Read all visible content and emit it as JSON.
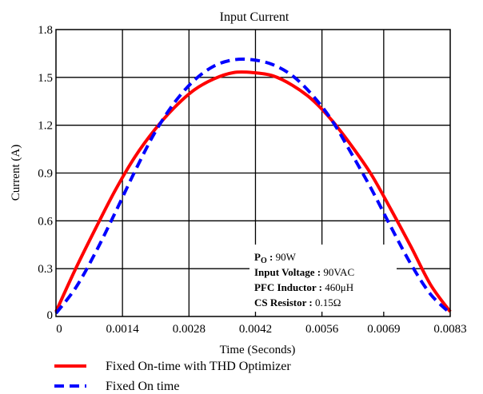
{
  "chart_data": {
    "type": "line",
    "title": "Input Current",
    "xlabel": "Time (Seconds)",
    "ylabel": "Current (A)",
    "xlim": [
      0,
      0.0083
    ],
    "ylim": [
      0,
      1.8
    ],
    "x_ticks": [
      "0",
      "0.0014",
      "0.0028",
      "0.0042",
      "0.0056",
      "0.0069",
      "0.0083"
    ],
    "y_ticks": [
      "0",
      "0.3",
      "0.6",
      "0.9",
      "1.2",
      "1.5",
      "1.8"
    ],
    "grid": true,
    "legend_position": "bottom",
    "x": [
      0,
      0.000415,
      0.00083,
      0.001245,
      0.00166,
      0.002075,
      0.00249,
      0.002905,
      0.00332,
      0.003735,
      0.00415,
      0.004565,
      0.00498,
      0.005395,
      0.00581,
      0.006225,
      0.00664,
      0.007055,
      0.00747,
      0.007885,
      0.0083
    ],
    "series": [
      {
        "name": "Fixed On-time with THD Optimizer",
        "color": "#ff0000",
        "style": "solid",
        "values": [
          0.03,
          0.3,
          0.55,
          0.79,
          1.0,
          1.17,
          1.31,
          1.42,
          1.49,
          1.53,
          1.53,
          1.51,
          1.45,
          1.36,
          1.23,
          1.07,
          0.89,
          0.67,
          0.44,
          0.2,
          0.03
        ]
      },
      {
        "name": "Fixed On time",
        "color": "#0000ff",
        "style": "dashed",
        "values": [
          0.02,
          0.18,
          0.4,
          0.65,
          0.91,
          1.15,
          1.34,
          1.48,
          1.57,
          1.61,
          1.61,
          1.58,
          1.51,
          1.39,
          1.23,
          1.02,
          0.8,
          0.56,
          0.33,
          0.14,
          0.02
        ]
      }
    ],
    "annotation": [
      {
        "key": "P",
        "sub": "O",
        "sep": " : ",
        "value": "90W"
      },
      {
        "key": "Input Voltage",
        "sub": "",
        "sep": " : ",
        "value": "90VAC"
      },
      {
        "key": "PFC Inductor",
        "sub": "",
        "sep": " : ",
        "value": "460μH"
      },
      {
        "key": "CS Resistor",
        "sub": "",
        "sep": " : ",
        "value": "0.15Ω"
      }
    ]
  }
}
